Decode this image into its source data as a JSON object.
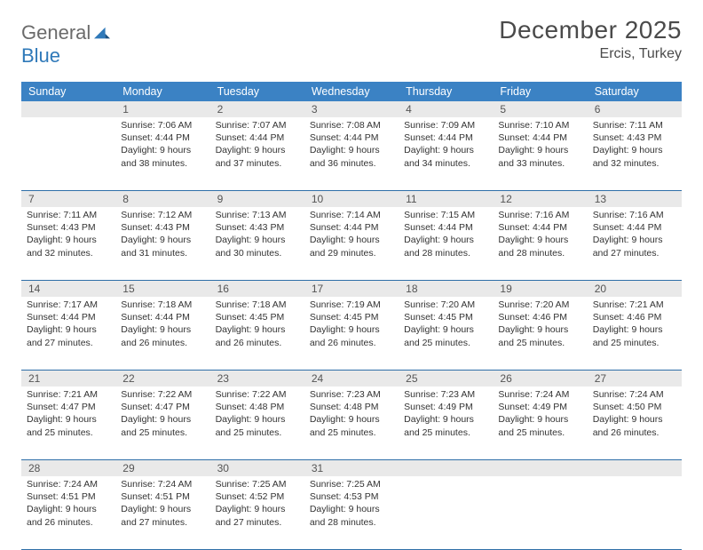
{
  "logo": {
    "general": "General",
    "blue": "Blue"
  },
  "title": "December 2025",
  "location": "Ercis, Turkey",
  "colors": {
    "header_bg": "#3b82c4",
    "header_text": "#ffffff",
    "daynum_bg": "#e9e9e9",
    "rule": "#2f6fa8",
    "text": "#333333"
  },
  "day_names": [
    "Sunday",
    "Monday",
    "Tuesday",
    "Wednesday",
    "Thursday",
    "Friday",
    "Saturday"
  ],
  "weeks": [
    {
      "nums": [
        "",
        "1",
        "2",
        "3",
        "4",
        "5",
        "6"
      ],
      "cells": [
        null,
        {
          "sunrise": "Sunrise: 7:06 AM",
          "sunset": "Sunset: 4:44 PM",
          "d1": "Daylight: 9 hours",
          "d2": "and 38 minutes."
        },
        {
          "sunrise": "Sunrise: 7:07 AM",
          "sunset": "Sunset: 4:44 PM",
          "d1": "Daylight: 9 hours",
          "d2": "and 37 minutes."
        },
        {
          "sunrise": "Sunrise: 7:08 AM",
          "sunset": "Sunset: 4:44 PM",
          "d1": "Daylight: 9 hours",
          "d2": "and 36 minutes."
        },
        {
          "sunrise": "Sunrise: 7:09 AM",
          "sunset": "Sunset: 4:44 PM",
          "d1": "Daylight: 9 hours",
          "d2": "and 34 minutes."
        },
        {
          "sunrise": "Sunrise: 7:10 AM",
          "sunset": "Sunset: 4:44 PM",
          "d1": "Daylight: 9 hours",
          "d2": "and 33 minutes."
        },
        {
          "sunrise": "Sunrise: 7:11 AM",
          "sunset": "Sunset: 4:43 PM",
          "d1": "Daylight: 9 hours",
          "d2": "and 32 minutes."
        }
      ]
    },
    {
      "nums": [
        "7",
        "8",
        "9",
        "10",
        "11",
        "12",
        "13"
      ],
      "cells": [
        {
          "sunrise": "Sunrise: 7:11 AM",
          "sunset": "Sunset: 4:43 PM",
          "d1": "Daylight: 9 hours",
          "d2": "and 32 minutes."
        },
        {
          "sunrise": "Sunrise: 7:12 AM",
          "sunset": "Sunset: 4:43 PM",
          "d1": "Daylight: 9 hours",
          "d2": "and 31 minutes."
        },
        {
          "sunrise": "Sunrise: 7:13 AM",
          "sunset": "Sunset: 4:43 PM",
          "d1": "Daylight: 9 hours",
          "d2": "and 30 minutes."
        },
        {
          "sunrise": "Sunrise: 7:14 AM",
          "sunset": "Sunset: 4:44 PM",
          "d1": "Daylight: 9 hours",
          "d2": "and 29 minutes."
        },
        {
          "sunrise": "Sunrise: 7:15 AM",
          "sunset": "Sunset: 4:44 PM",
          "d1": "Daylight: 9 hours",
          "d2": "and 28 minutes."
        },
        {
          "sunrise": "Sunrise: 7:16 AM",
          "sunset": "Sunset: 4:44 PM",
          "d1": "Daylight: 9 hours",
          "d2": "and 28 minutes."
        },
        {
          "sunrise": "Sunrise: 7:16 AM",
          "sunset": "Sunset: 4:44 PM",
          "d1": "Daylight: 9 hours",
          "d2": "and 27 minutes."
        }
      ]
    },
    {
      "nums": [
        "14",
        "15",
        "16",
        "17",
        "18",
        "19",
        "20"
      ],
      "cells": [
        {
          "sunrise": "Sunrise: 7:17 AM",
          "sunset": "Sunset: 4:44 PM",
          "d1": "Daylight: 9 hours",
          "d2": "and 27 minutes."
        },
        {
          "sunrise": "Sunrise: 7:18 AM",
          "sunset": "Sunset: 4:44 PM",
          "d1": "Daylight: 9 hours",
          "d2": "and 26 minutes."
        },
        {
          "sunrise": "Sunrise: 7:18 AM",
          "sunset": "Sunset: 4:45 PM",
          "d1": "Daylight: 9 hours",
          "d2": "and 26 minutes."
        },
        {
          "sunrise": "Sunrise: 7:19 AM",
          "sunset": "Sunset: 4:45 PM",
          "d1": "Daylight: 9 hours",
          "d2": "and 26 minutes."
        },
        {
          "sunrise": "Sunrise: 7:20 AM",
          "sunset": "Sunset: 4:45 PM",
          "d1": "Daylight: 9 hours",
          "d2": "and 25 minutes."
        },
        {
          "sunrise": "Sunrise: 7:20 AM",
          "sunset": "Sunset: 4:46 PM",
          "d1": "Daylight: 9 hours",
          "d2": "and 25 minutes."
        },
        {
          "sunrise": "Sunrise: 7:21 AM",
          "sunset": "Sunset: 4:46 PM",
          "d1": "Daylight: 9 hours",
          "d2": "and 25 minutes."
        }
      ]
    },
    {
      "nums": [
        "21",
        "22",
        "23",
        "24",
        "25",
        "26",
        "27"
      ],
      "cells": [
        {
          "sunrise": "Sunrise: 7:21 AM",
          "sunset": "Sunset: 4:47 PM",
          "d1": "Daylight: 9 hours",
          "d2": "and 25 minutes."
        },
        {
          "sunrise": "Sunrise: 7:22 AM",
          "sunset": "Sunset: 4:47 PM",
          "d1": "Daylight: 9 hours",
          "d2": "and 25 minutes."
        },
        {
          "sunrise": "Sunrise: 7:22 AM",
          "sunset": "Sunset: 4:48 PM",
          "d1": "Daylight: 9 hours",
          "d2": "and 25 minutes."
        },
        {
          "sunrise": "Sunrise: 7:23 AM",
          "sunset": "Sunset: 4:48 PM",
          "d1": "Daylight: 9 hours",
          "d2": "and 25 minutes."
        },
        {
          "sunrise": "Sunrise: 7:23 AM",
          "sunset": "Sunset: 4:49 PM",
          "d1": "Daylight: 9 hours",
          "d2": "and 25 minutes."
        },
        {
          "sunrise": "Sunrise: 7:24 AM",
          "sunset": "Sunset: 4:49 PM",
          "d1": "Daylight: 9 hours",
          "d2": "and 25 minutes."
        },
        {
          "sunrise": "Sunrise: 7:24 AM",
          "sunset": "Sunset: 4:50 PM",
          "d1": "Daylight: 9 hours",
          "d2": "and 26 minutes."
        }
      ]
    },
    {
      "nums": [
        "28",
        "29",
        "30",
        "31",
        "",
        "",
        ""
      ],
      "cells": [
        {
          "sunrise": "Sunrise: 7:24 AM",
          "sunset": "Sunset: 4:51 PM",
          "d1": "Daylight: 9 hours",
          "d2": "and 26 minutes."
        },
        {
          "sunrise": "Sunrise: 7:24 AM",
          "sunset": "Sunset: 4:51 PM",
          "d1": "Daylight: 9 hours",
          "d2": "and 27 minutes."
        },
        {
          "sunrise": "Sunrise: 7:25 AM",
          "sunset": "Sunset: 4:52 PM",
          "d1": "Daylight: 9 hours",
          "d2": "and 27 minutes."
        },
        {
          "sunrise": "Sunrise: 7:25 AM",
          "sunset": "Sunset: 4:53 PM",
          "d1": "Daylight: 9 hours",
          "d2": "and 28 minutes."
        },
        null,
        null,
        null
      ]
    }
  ]
}
